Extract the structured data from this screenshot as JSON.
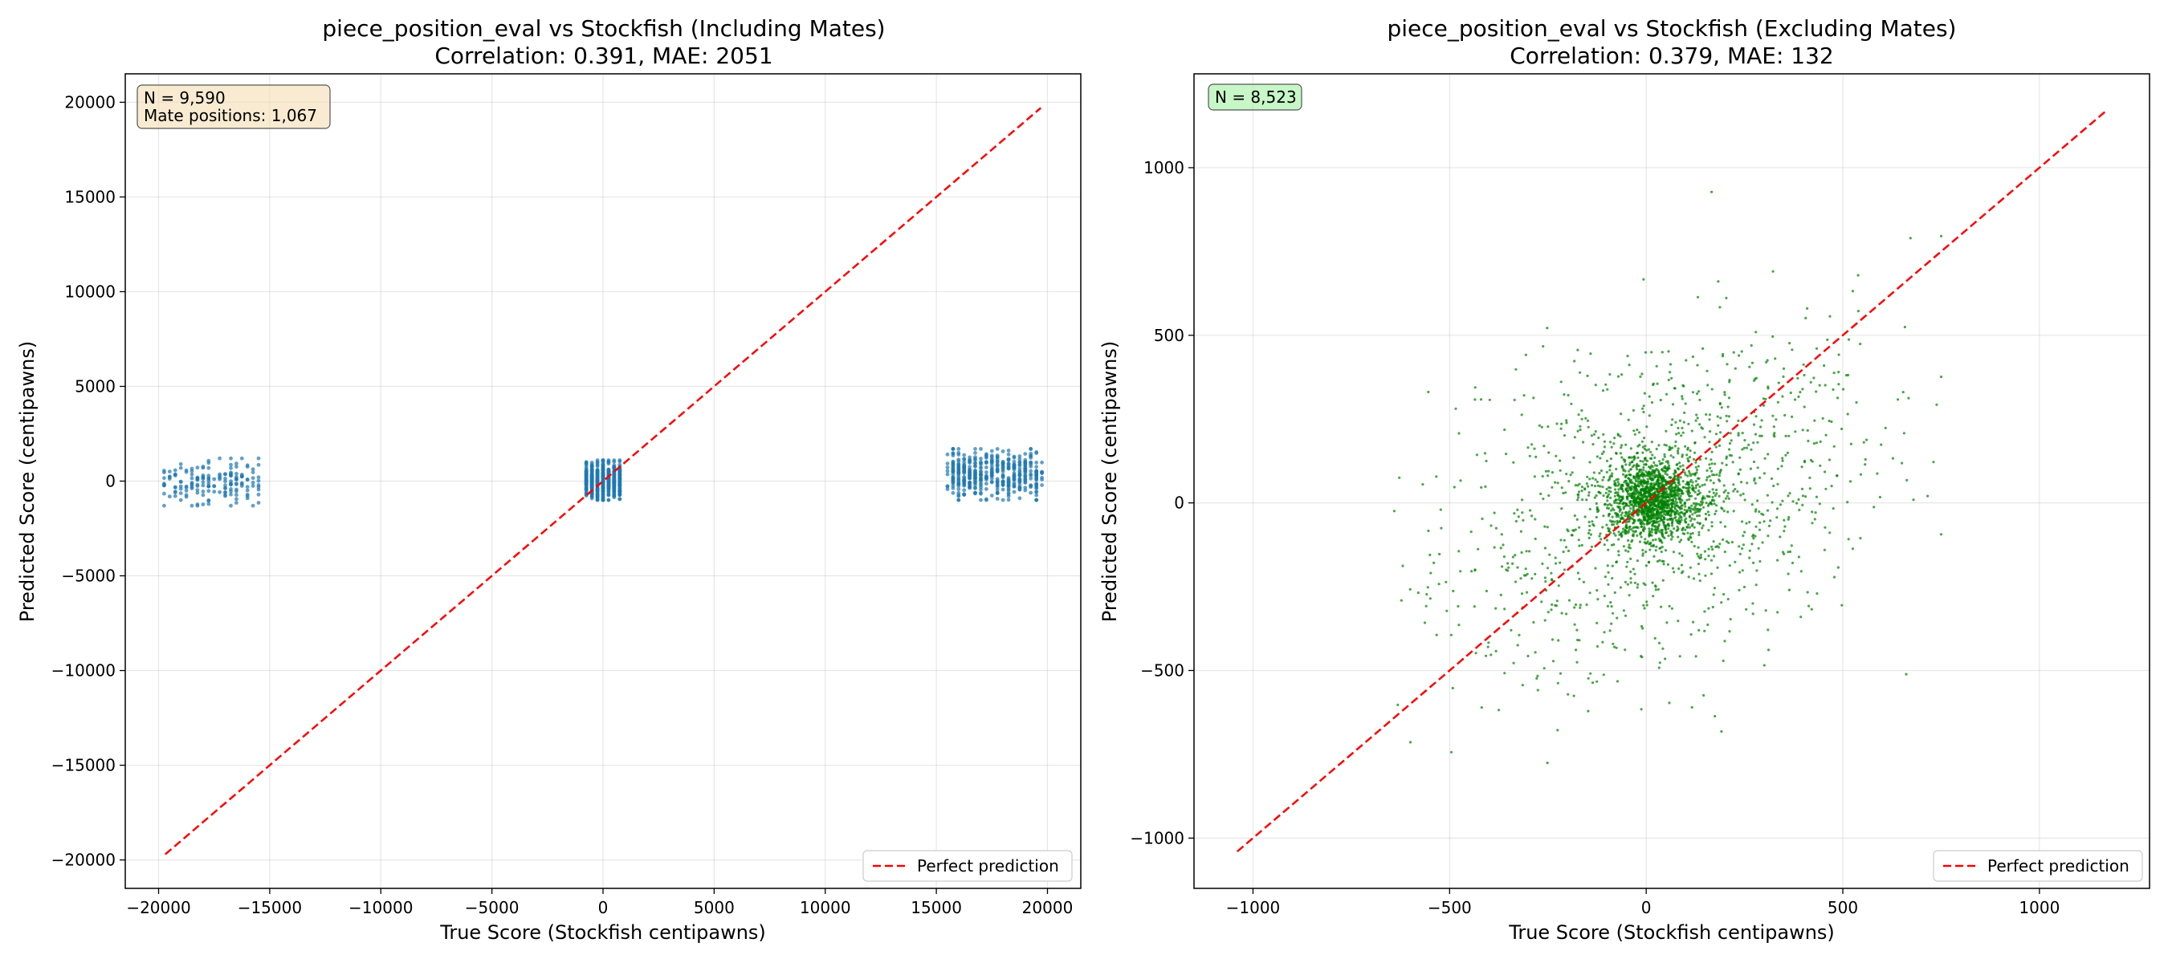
{
  "chart_data": [
    {
      "type": "scatter",
      "title": "piece_position_eval vs Stockfish (Including Mates)",
      "subtitle": "Correlation: 0.391, MAE: 2051",
      "xlabel": "True Score (Stockfish centipawns)",
      "ylabel": "Predicted Score (centipawns)",
      "xlim": [
        -21500,
        21500
      ],
      "ylim": [
        -21500,
        21500
      ],
      "xticks": [
        -20000,
        -15000,
        -10000,
        -5000,
        0,
        5000,
        10000,
        15000,
        20000
      ],
      "yticks": [
        -20000,
        -15000,
        -10000,
        -5000,
        0,
        5000,
        10000,
        15000,
        20000
      ],
      "xtick_labels": [
        "−20000",
        "−15000",
        "−10000",
        "−5000",
        "0",
        "5000",
        "10000",
        "15000",
        "20000"
      ],
      "ytick_labels": [
        "−20000",
        "−15000",
        "−10000",
        "−5000",
        "0",
        "5000",
        "10000",
        "15000",
        "20000"
      ],
      "grid": true,
      "legend_position": "bottom-right",
      "series": [
        {
          "kind": "points",
          "color": "#1f77b4",
          "clusters": [
            {
              "x_range": [
                -19800,
                -15400
              ],
              "y_range": [
                -1300,
                1200
              ],
              "count": 170
            },
            {
              "x_range": [
                -800,
                800
              ],
              "y_range": [
                -1000,
                1100
              ],
              "count": 650
            },
            {
              "x_range": [
                15500,
                19800
              ],
              "y_range": [
                -1000,
                1700
              ],
              "count": 450
            }
          ]
        },
        {
          "name": "Perfect prediction",
          "kind": "line",
          "color": "#ff0000",
          "dashed": true,
          "points": [
            [
              -19700,
              -19700
            ],
            [
              19700,
              19700
            ]
          ]
        }
      ],
      "annotation": {
        "n_text": "N = 9,590",
        "mate_text": "Mate positions: 1,067",
        "background": "#f5deb3"
      }
    },
    {
      "type": "scatter",
      "title": "piece_position_eval vs Stockfish (Excluding Mates)",
      "subtitle": "Correlation: 0.379, MAE: 132",
      "xlabel": "True Score (Stockfish centipawns)",
      "ylabel": "Predicted Score (centipawns)",
      "xlim": [
        -1150,
        1280
      ],
      "ylim": [
        -1150,
        1280
      ],
      "xticks": [
        -1000,
        -500,
        0,
        500,
        1000
      ],
      "yticks": [
        -1000,
        -500,
        0,
        500,
        1000
      ],
      "xtick_labels": [
        "−1000",
        "−500",
        "0",
        "500",
        "1000"
      ],
      "ytick_labels": [
        "−1000",
        "−500",
        "0",
        "500",
        "1000"
      ],
      "grid": true,
      "legend_position": "bottom-right",
      "series": [
        {
          "kind": "points",
          "color": "#008000",
          "spread": {
            "core_sd_x": 60,
            "core_sd_y": 60,
            "wide_sd_x": 260,
            "wide_sd_y": 230,
            "x_range": [
              -750,
              750
            ],
            "y_range": [
              -1050,
              1180
            ],
            "count": 2600
          }
        },
        {
          "name": "Perfect prediction",
          "kind": "line",
          "color": "#ff0000",
          "dashed": true,
          "points": [
            [
              -1040,
              -1040
            ],
            [
              1170,
              1170
            ]
          ]
        }
      ],
      "annotation": {
        "n_text": "N = 8,523",
        "background": "#90ee90"
      }
    }
  ]
}
